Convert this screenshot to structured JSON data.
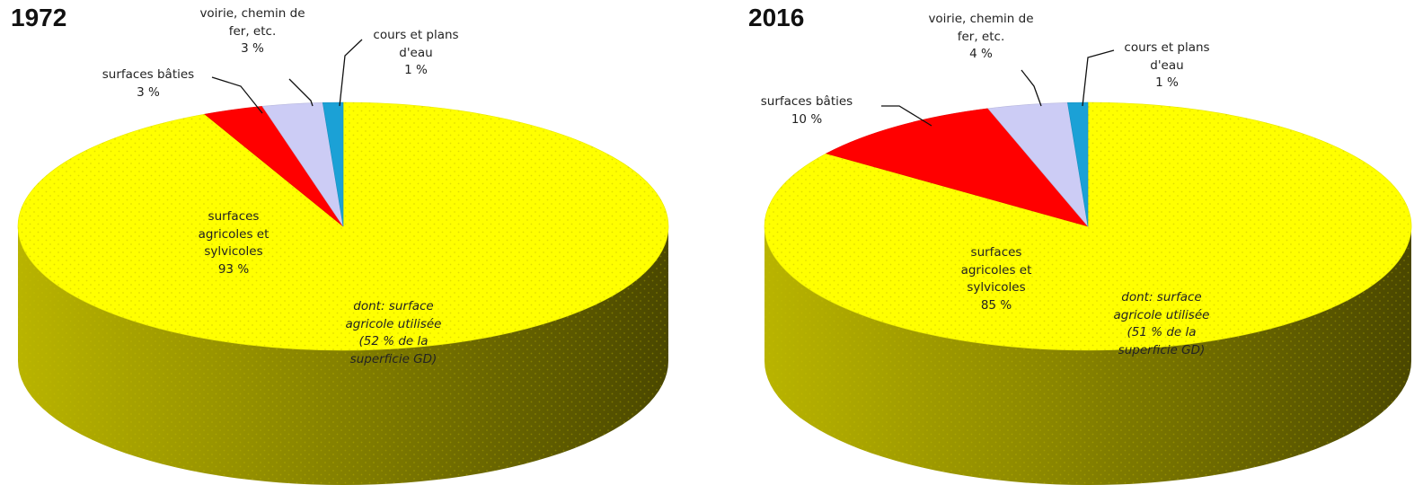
{
  "chart_data": [
    {
      "type": "pie",
      "title": "1972",
      "slices": [
        {
          "label": "surfaces agricoles et sylvicoles",
          "value": 93,
          "value_label": "93 %",
          "color": "#ffff00",
          "lines": [
            "surfaces",
            "agricoles et",
            "sylvicoles"
          ]
        },
        {
          "label": "surfaces bâties",
          "value": 3,
          "value_label": "3 %",
          "color": "#ff0000",
          "lines": [
            "surfaces bâties"
          ]
        },
        {
          "label": "voirie, chemin de fer, etc.",
          "value": 3,
          "value_label": "3 %",
          "color": "#ccccf5",
          "lines": [
            "voirie, chemin de",
            "fer, etc."
          ]
        },
        {
          "label": "cours et plans d'eau",
          "value": 1,
          "value_label": "1 %",
          "color": "#1ba1d6",
          "lines": [
            "cours et plans",
            "d'eau"
          ]
        }
      ],
      "annotation": [
        "dont: surface",
        "agricole utilisée",
        "(52 % de la",
        "superficie GD)"
      ]
    },
    {
      "type": "pie",
      "title": "2016",
      "slices": [
        {
          "label": "surfaces agricoles et sylvicoles",
          "value": 85,
          "value_label": "85 %",
          "color": "#ffff00",
          "lines": [
            "surfaces",
            "agricoles et",
            "sylvicoles"
          ]
        },
        {
          "label": "surfaces bâties",
          "value": 10,
          "value_label": "10 %",
          "color": "#ff0000",
          "lines": [
            "surfaces bâties"
          ]
        },
        {
          "label": "voirie, chemin de fer, etc.",
          "value": 4,
          "value_label": "4 %",
          "color": "#ccccf5",
          "lines": [
            "voirie, chemin de",
            "fer, etc."
          ]
        },
        {
          "label": "cours et plans d'eau",
          "value": 1,
          "value_label": "1 %",
          "color": "#1ba1d6",
          "lines": [
            "cours et plans",
            "d'eau"
          ]
        }
      ],
      "annotation": [
        "dont: surface",
        "agricole utilisée",
        "(51 % de la",
        "superficie GD)"
      ]
    }
  ]
}
